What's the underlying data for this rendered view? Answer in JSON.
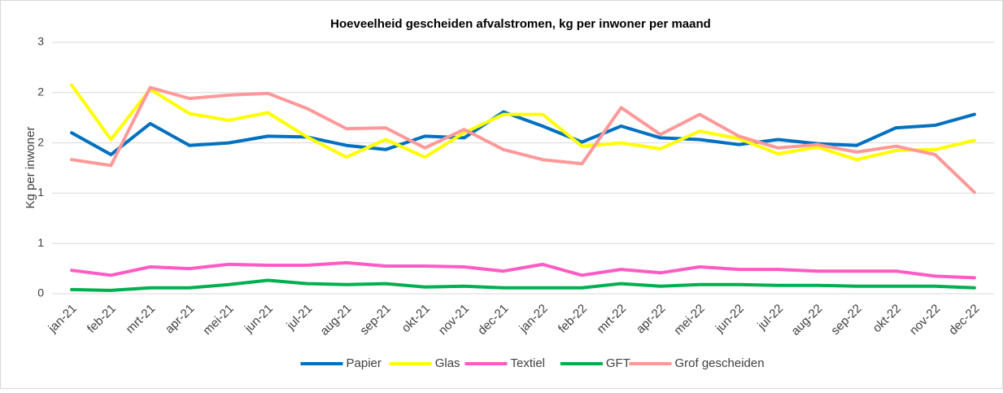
{
  "chart_data": {
    "type": "line",
    "title": "Hoeveelheid gescheiden afvalstromen, kg per inwoner per maand",
    "y_label": "Kg per inwoner",
    "categories": [
      "jan-21",
      "feb-21",
      "mrt-21",
      "apr-21",
      "mei-21",
      "jun-21",
      "jul-21",
      "aug-21",
      "sep-21",
      "okt-21",
      "nov-21",
      "dec-21",
      "jan-22",
      "feb-22",
      "mrt-22",
      "apr-22",
      "mei-22",
      "jun-22",
      "jul-22",
      "aug-22",
      "sep-22",
      "okt-22",
      "nov-22",
      "dec-22"
    ],
    "series": [
      {
        "name": "Papier",
        "color": "#0070c0",
        "values": [
          1.92,
          1.66,
          2.03,
          1.77,
          1.8,
          1.88,
          1.87,
          1.77,
          1.72,
          1.88,
          1.86,
          2.17,
          2.0,
          1.81,
          2.0,
          1.86,
          1.84,
          1.78,
          1.84,
          1.79,
          1.77,
          1.98,
          2.01,
          2.14
        ]
      },
      {
        "name": "Glas",
        "color": "#ffff00",
        "values": [
          2.49,
          1.84,
          2.44,
          2.15,
          2.07,
          2.16,
          1.87,
          1.63,
          1.84,
          1.63,
          1.92,
          2.14,
          2.14,
          1.76,
          1.8,
          1.73,
          1.94,
          1.85,
          1.67,
          1.75,
          1.6,
          1.71,
          1.72,
          1.83
        ]
      },
      {
        "name": "Textiel",
        "color": "#ff5bc4",
        "values": [
          0.28,
          0.22,
          0.32,
          0.3,
          0.35,
          0.34,
          0.34,
          0.37,
          0.33,
          0.33,
          0.32,
          0.27,
          0.35,
          0.22,
          0.29,
          0.25,
          0.32,
          0.29,
          0.29,
          0.27,
          0.27,
          0.27,
          0.21,
          0.19
        ]
      },
      {
        "name": "GFT",
        "color": "#00b050",
        "values": [
          0.05,
          0.04,
          0.07,
          0.07,
          0.11,
          0.16,
          0.12,
          0.11,
          0.12,
          0.08,
          0.09,
          0.07,
          0.07,
          0.07,
          0.12,
          0.09,
          0.11,
          0.11,
          0.1,
          0.1,
          0.09,
          0.09,
          0.09,
          0.07
        ]
      },
      {
        "name": "Grof gescheiden",
        "color": "#ff9999",
        "values": [
          1.6,
          1.53,
          2.46,
          2.33,
          2.37,
          2.39,
          2.21,
          1.97,
          1.98,
          1.74,
          1.96,
          1.72,
          1.6,
          1.55,
          2.22,
          1.9,
          2.14,
          1.88,
          1.74,
          1.78,
          1.69,
          1.76,
          1.66,
          1.21
        ]
      }
    ],
    "ylim": [
      0,
      3
    ],
    "yticks": [
      0,
      {
        "value": 0.6,
        "label": "1"
      },
      {
        "value": 1.2,
        "label": "1"
      },
      {
        "value": 1.8,
        "label": "2"
      },
      {
        "value": 2.4,
        "label": "2"
      },
      3
    ],
    "grid": true,
    "legend": "bottom"
  }
}
